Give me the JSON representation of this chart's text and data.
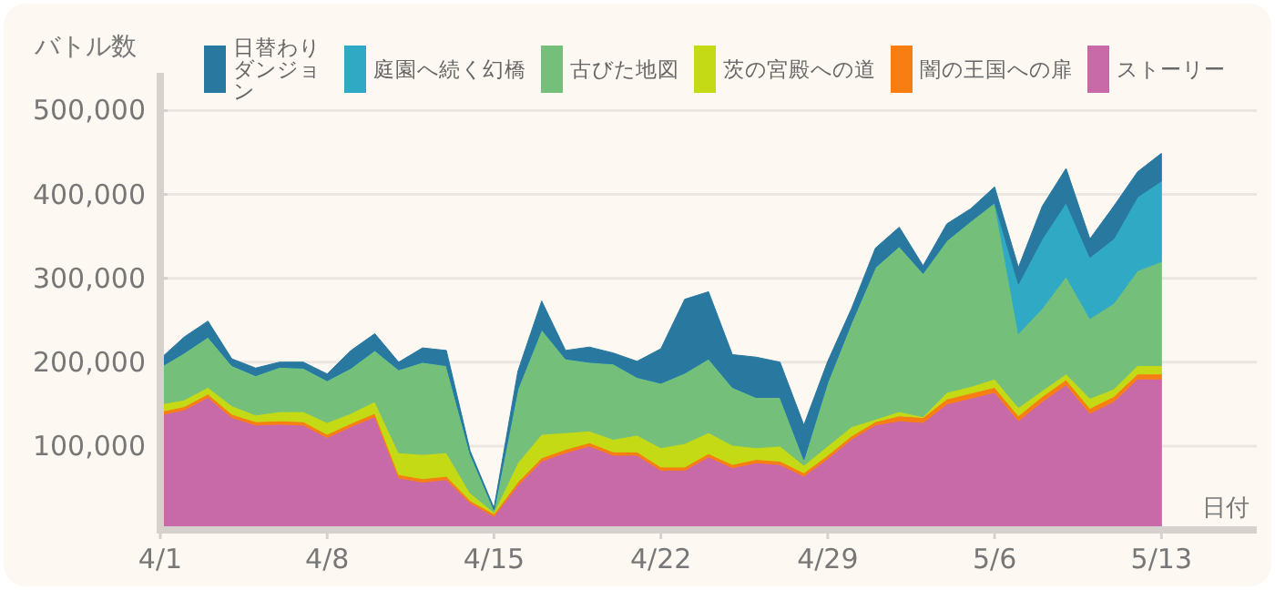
{
  "chart_data": {
    "type": "area",
    "stacked": true,
    "xlabel": "日付",
    "ylabel": "バトル数",
    "x": [
      "--04-01",
      "--04-02",
      "--04-03",
      "--04-04",
      "--04-05",
      "--04-06",
      "--04-07",
      "--04-08",
      "--04-09",
      "--04-10",
      "--04-11",
      "--04-12",
      "--04-13",
      "--04-14",
      "--04-15",
      "--04-16",
      "--04-17",
      "--04-18",
      "--04-19",
      "--04-20",
      "--04-21",
      "--04-22",
      "--04-23",
      "--04-24",
      "--04-25",
      "--04-26",
      "--04-27",
      "--04-28",
      "--04-29",
      "--04-30",
      "--05-01",
      "--05-02",
      "--05-03",
      "--05-04",
      "--05-05",
      "--05-06",
      "--05-07",
      "--05-08",
      "--05-09",
      "--05-10",
      "--05-11",
      "--05-12",
      "--05-13"
    ],
    "xlim": [
      "--04-01",
      "--05-17"
    ],
    "xticks": [
      {
        "value": "--04-01",
        "label": "4/1"
      },
      {
        "value": "--04-08",
        "label": "4/8"
      },
      {
        "value": "--04-15",
        "label": "4/15"
      },
      {
        "value": "--04-22",
        "label": "4/22"
      },
      {
        "value": "--04-29",
        "label": "4/29"
      },
      {
        "value": "--05-06",
        "label": "5/6"
      },
      {
        "value": "--05-13",
        "label": "5/13"
      }
    ],
    "ylim": [
      0,
      545000
    ],
    "yticks": [
      {
        "value": 100000,
        "label": "100,000"
      },
      {
        "value": 200000,
        "label": "200,000"
      },
      {
        "value": 300000,
        "label": "300,000"
      },
      {
        "value": 400000,
        "label": "400,000"
      },
      {
        "value": 500000,
        "label": "500,000"
      }
    ],
    "grid": "y",
    "legend": "top",
    "series": [
      {
        "name": "ストーリー",
        "color": "#c869a8",
        "values": [
          137000,
          143000,
          158000,
          134000,
          125000,
          126000,
          125000,
          110000,
          123000,
          135000,
          62000,
          57000,
          60000,
          32000,
          16000,
          53000,
          82000,
          92000,
          100000,
          89000,
          89000,
          71000,
          71000,
          87000,
          74000,
          80000,
          78000,
          64000,
          85000,
          108000,
          125000,
          130000,
          128000,
          150000,
          157000,
          164000,
          130000,
          153000,
          173000,
          139000,
          153000,
          180000,
          180000
        ]
      },
      {
        "name": "闇の王国への扉",
        "color": "#f87e14",
        "values": [
          4000,
          4000,
          4000,
          4000,
          4000,
          4000,
          4000,
          4000,
          4000,
          4000,
          4000,
          4000,
          4000,
          3000,
          3000,
          4000,
          4000,
          4000,
          4000,
          4000,
          4000,
          4000,
          4000,
          4000,
          4000,
          4000,
          4000,
          4000,
          4000,
          4000,
          4000,
          6000,
          6000,
          6000,
          6000,
          6000,
          6000,
          6000,
          6000,
          6000,
          6000,
          6000,
          6000
        ]
      },
      {
        "name": "茨の宮殿への道",
        "color": "#c4da14",
        "values": [
          9000,
          8000,
          8000,
          10000,
          8000,
          11000,
          12000,
          14000,
          12000,
          14000,
          26000,
          29000,
          28000,
          9000,
          2000,
          23000,
          28000,
          20000,
          14000,
          15000,
          20000,
          23000,
          28000,
          25000,
          23000,
          14000,
          18000,
          9000,
          11000,
          11000,
          3000,
          5000,
          1000,
          8000,
          8000,
          10000,
          10000,
          7000,
          7000,
          12000,
          9000,
          10000,
          10000
        ]
      },
      {
        "name": "古びた地図",
        "color": "#74c07a",
        "values": [
          44000,
          56000,
          60000,
          48000,
          47000,
          53000,
          52000,
          50000,
          54000,
          61000,
          99000,
          110000,
          104000,
          47000,
          3000,
          88000,
          125000,
          88000,
          82000,
          90000,
          69000,
          77000,
          84000,
          88000,
          69000,
          60000,
          58000,
          7000,
          76000,
          124000,
          181000,
          197000,
          171000,
          181000,
          197000,
          210000,
          88000,
          98000,
          116000,
          95000,
          102000,
          113000,
          124000
        ]
      },
      {
        "name": "庭園へ続く幻橋",
        "color": "#30aac4",
        "values": [
          0,
          0,
          0,
          0,
          0,
          0,
          0,
          0,
          0,
          0,
          0,
          0,
          0,
          0,
          0,
          0,
          0,
          0,
          0,
          0,
          0,
          0,
          0,
          0,
          0,
          0,
          0,
          0,
          0,
          0,
          0,
          0,
          0,
          0,
          0,
          0,
          59000,
          83000,
          88000,
          73000,
          77000,
          88000,
          96000
        ]
      },
      {
        "name": "日替わりダンジョン",
        "color": "#2878a0",
        "values": [
          10000,
          19000,
          19000,
          8000,
          9000,
          6000,
          7000,
          8000,
          21000,
          20000,
          9000,
          17000,
          18000,
          3000,
          2000,
          21000,
          34000,
          10000,
          18000,
          13000,
          19000,
          41000,
          88000,
          80000,
          39000,
          48000,
          42000,
          41000,
          25000,
          17000,
          23000,
          23000,
          9000,
          20000,
          15000,
          19000,
          20000,
          39000,
          41000,
          22000,
          39000,
          30000,
          33000
        ]
      }
    ]
  }
}
